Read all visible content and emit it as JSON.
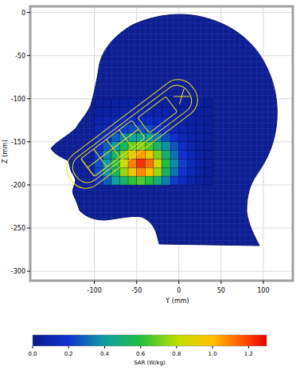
{
  "chart_data": {
    "type": "heatmap",
    "x_label": "Y (mm)",
    "y_label": "Z (mm)",
    "xlim": [
      -176,
      135
    ],
    "ylim": [
      -311,
      7
    ],
    "xticks": [
      -100,
      -50,
      0,
      50,
      100
    ],
    "yticks": [
      0,
      -50,
      -100,
      -150,
      -200,
      -250,
      -300
    ],
    "grid": true,
    "x": [
      -95,
      -85,
      -75,
      -65,
      -55,
      -45,
      -35,
      -25,
      -15,
      -5,
      5,
      15,
      25,
      35
    ],
    "y": [
      -105,
      -115,
      -125,
      -135,
      -145,
      -155,
      -165,
      -175,
      -185,
      -195
    ],
    "cells": [
      [
        0.05,
        0.05,
        0.06,
        0.06,
        0.07,
        0.07,
        0.07,
        0.06,
        0.06,
        0.05,
        0.05,
        0.04,
        0.04,
        0.03
      ],
      [
        0.06,
        0.07,
        0.08,
        0.09,
        0.1,
        0.1,
        0.1,
        0.09,
        0.08,
        0.07,
        0.06,
        0.05,
        0.04,
        0.04
      ],
      [
        0.08,
        0.1,
        0.12,
        0.14,
        0.15,
        0.16,
        0.15,
        0.13,
        0.11,
        0.09,
        0.07,
        0.06,
        0.05,
        0.04
      ],
      [
        0.1,
        0.14,
        0.18,
        0.22,
        0.25,
        0.26,
        0.24,
        0.2,
        0.16,
        0.12,
        0.09,
        0.07,
        0.05,
        0.04
      ],
      [
        0.14,
        0.2,
        0.28,
        0.36,
        0.42,
        0.44,
        0.4,
        0.33,
        0.25,
        0.18,
        0.12,
        0.08,
        0.06,
        0.04
      ],
      [
        0.18,
        0.28,
        0.4,
        0.55,
        0.68,
        0.72,
        0.65,
        0.52,
        0.38,
        0.26,
        0.16,
        0.1,
        0.06,
        0.04
      ],
      [
        0.22,
        0.36,
        0.52,
        0.72,
        0.95,
        1.05,
        0.95,
        0.72,
        0.5,
        0.32,
        0.2,
        0.12,
        0.07,
        0.04
      ],
      [
        0.25,
        0.4,
        0.58,
        0.82,
        1.1,
        1.22,
        1.12,
        0.85,
        0.58,
        0.36,
        0.22,
        0.13,
        0.07,
        0.04
      ],
      [
        0.24,
        0.38,
        0.55,
        0.75,
        0.98,
        1.08,
        1.0,
        0.76,
        0.52,
        0.32,
        0.2,
        0.12,
        0.07,
        0.04
      ],
      [
        0.18,
        0.28,
        0.4,
        0.52,
        0.62,
        0.66,
        0.6,
        0.48,
        0.34,
        0.22,
        0.14,
        0.09,
        0.05,
        0.03
      ]
    ],
    "colorbar": {
      "label": "SAR (W/kg)",
      "range": [
        0,
        1.3
      ],
      "ticks": [
        {
          "value": 0,
          "label": "0.0"
        },
        0.2,
        0.4,
        0.6,
        0.8,
        {
          "value": 1,
          "label": "1.0"
        },
        1.2
      ]
    }
  }
}
